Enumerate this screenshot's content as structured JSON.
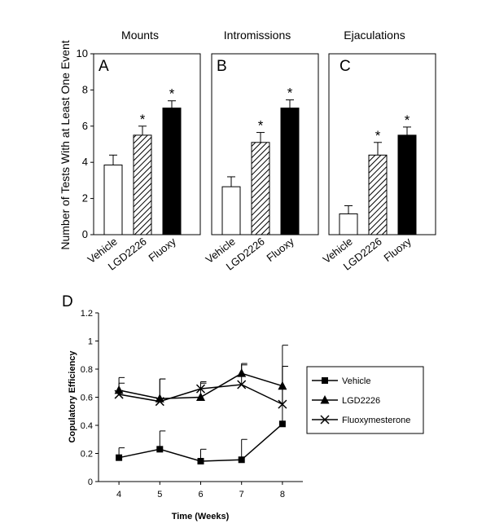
{
  "chart_data": [
    {
      "type": "bar",
      "panel": "A",
      "title": "Mounts",
      "ylabel": "Number of Tests With at Least One Event",
      "ylim": [
        0,
        10
      ],
      "yticks": [
        0,
        2,
        4,
        6,
        8,
        10
      ],
      "categories": [
        "Vehicle",
        "LGD2226",
        "Fluoxy"
      ],
      "values": [
        3.85,
        5.5,
        7.0
      ],
      "errors": [
        0.55,
        0.5,
        0.4
      ],
      "significant": [
        false,
        true,
        true
      ],
      "significance_marker": "*",
      "bar_fills": [
        "white",
        "hatched",
        "black"
      ]
    },
    {
      "type": "bar",
      "panel": "B",
      "title": "Intromissions",
      "ylim": [
        0,
        10
      ],
      "categories": [
        "Vehicle",
        "LGD2226",
        "Fluoxy"
      ],
      "values": [
        2.65,
        5.1,
        7.0
      ],
      "errors": [
        0.55,
        0.55,
        0.45
      ],
      "significant": [
        false,
        true,
        true
      ],
      "significance_marker": "*",
      "bar_fills": [
        "white",
        "hatched",
        "black"
      ]
    },
    {
      "type": "bar",
      "panel": "C",
      "title": "Ejaculations",
      "ylim": [
        0,
        10
      ],
      "categories": [
        "Vehicle",
        "LGD2226",
        "Fluoxy"
      ],
      "values": [
        1.15,
        4.4,
        5.5
      ],
      "errors": [
        0.45,
        0.7,
        0.45
      ],
      "significant": [
        false,
        true,
        true
      ],
      "significance_marker": "*",
      "bar_fills": [
        "white",
        "hatched",
        "black"
      ]
    },
    {
      "type": "line",
      "panel": "D",
      "xlabel": "Time (Weeks)",
      "ylabel": "Copulatory Efficiency",
      "x": [
        4,
        5,
        6,
        7,
        8
      ],
      "xlim": [
        3.5,
        8.5
      ],
      "ylim": [
        0,
        1.2
      ],
      "yticks": [
        0,
        0.2,
        0.4,
        0.6,
        0.8,
        1,
        1.2
      ],
      "legend_position": "right",
      "series": [
        {
          "name": "Vehicle",
          "marker": "square",
          "values": [
            0.17,
            0.23,
            0.145,
            0.155,
            0.41
          ],
          "errors": [
            0.07,
            0.13,
            0.085,
            0.145,
            0.41
          ]
        },
        {
          "name": "LGD2226",
          "marker": "triangle",
          "values": [
            0.65,
            0.59,
            0.6,
            0.77,
            0.68
          ],
          "errors": [
            0.09,
            0.14,
            0.1,
            0.07,
            0.29
          ]
        },
        {
          "name": "Fluoxymesterone",
          "marker": "x",
          "values": [
            0.62,
            0.57,
            0.66,
            0.69,
            0.55
          ],
          "errors": [
            0.08,
            0.16,
            0.05,
            0.14,
            0.27
          ]
        }
      ]
    }
  ]
}
